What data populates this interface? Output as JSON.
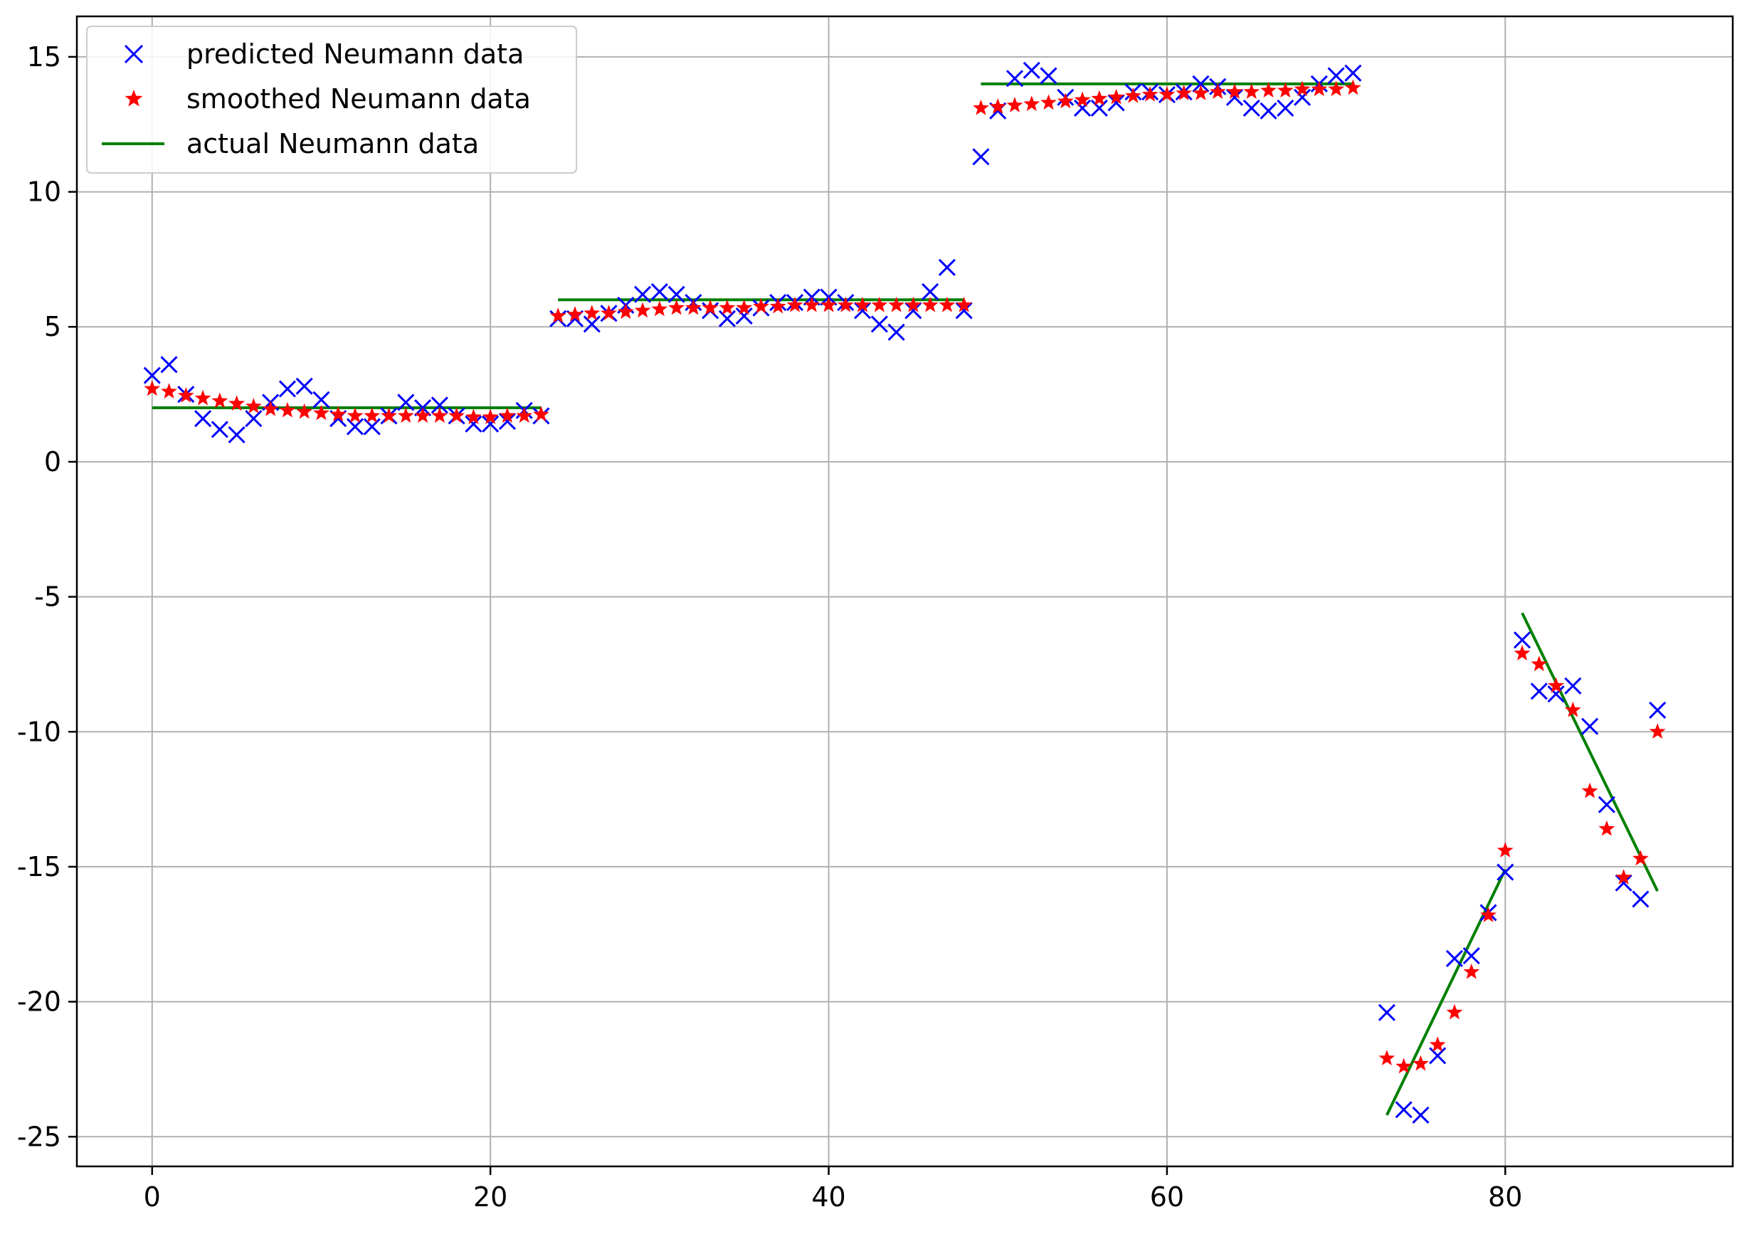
{
  "chart_data": {
    "type": "scatter",
    "title": "",
    "xlabel": "",
    "ylabel": "",
    "xlim": [
      -4.45,
      93.45
    ],
    "ylim": [
      -26.1,
      16.5
    ],
    "grid": true,
    "legend_position": "top-left",
    "x_ticks": [
      0,
      20,
      40,
      60,
      80
    ],
    "x_tick_labels": [
      "0",
      "20",
      "40",
      "60",
      "80"
    ],
    "y_ticks": [
      15,
      10,
      5,
      0,
      -5,
      -10,
      -15,
      -20,
      -25
    ],
    "y_tick_labels": [
      "15",
      "10",
      "5",
      "0",
      "-5",
      "-10",
      "-15",
      "-20",
      "-25"
    ],
    "series": [
      {
        "name": "predicted Neumann data",
        "kind": "x-marker",
        "color": "#0000ff",
        "x": [
          0,
          1,
          2,
          3,
          4,
          5,
          6,
          7,
          8,
          9,
          10,
          11,
          12,
          13,
          14,
          15,
          16,
          17,
          18,
          19,
          20,
          21,
          22,
          23,
          24,
          25,
          26,
          27,
          28,
          29,
          30,
          31,
          32,
          33,
          34,
          35,
          36,
          37,
          38,
          39,
          40,
          41,
          42,
          43,
          44,
          45,
          46,
          47,
          48,
          49,
          50,
          51,
          52,
          53,
          54,
          55,
          56,
          57,
          58,
          59,
          60,
          61,
          62,
          63,
          64,
          65,
          66,
          67,
          68,
          69,
          70,
          71,
          73,
          74,
          75,
          76,
          77,
          78,
          79,
          80,
          81,
          82,
          83,
          84,
          85,
          86,
          87,
          88,
          89
        ],
        "y": [
          3.2,
          3.6,
          2.5,
          1.6,
          1.2,
          1.0,
          1.6,
          2.2,
          2.7,
          2.8,
          2.3,
          1.6,
          1.3,
          1.3,
          1.7,
          2.2,
          2.0,
          2.1,
          1.7,
          1.4,
          1.4,
          1.5,
          1.9,
          1.7,
          5.3,
          5.3,
          5.1,
          5.5,
          5.8,
          6.2,
          6.3,
          6.2,
          5.9,
          5.6,
          5.3,
          5.4,
          5.7,
          5.9,
          5.9,
          6.1,
          6.1,
          5.9,
          5.6,
          5.1,
          4.8,
          5.6,
          6.3,
          7.2,
          5.6,
          11.3,
          13.0,
          14.2,
          14.5,
          14.3,
          13.5,
          13.1,
          13.1,
          13.3,
          13.7,
          13.7,
          13.6,
          13.7,
          14.0,
          13.9,
          13.5,
          13.1,
          13.0,
          13.1,
          13.5,
          14.0,
          14.3,
          14.4,
          -20.4,
          -24.0,
          -24.2,
          -22.0,
          -18.4,
          -18.3,
          -16.7,
          -15.2,
          -6.6,
          -8.5,
          -8.6,
          -8.3,
          -9.8,
          -12.7,
          -15.6,
          -16.2,
          -9.2
        ]
      },
      {
        "name": "smoothed Neumann data",
        "kind": "star-marker",
        "color": "#ff0000",
        "x": [
          0,
          1,
          2,
          3,
          4,
          5,
          6,
          7,
          8,
          9,
          10,
          11,
          12,
          13,
          14,
          15,
          16,
          17,
          18,
          19,
          20,
          21,
          22,
          23,
          24,
          25,
          26,
          27,
          28,
          29,
          30,
          31,
          32,
          33,
          34,
          35,
          36,
          37,
          38,
          39,
          40,
          41,
          42,
          43,
          44,
          45,
          46,
          47,
          48,
          49,
          50,
          51,
          52,
          53,
          54,
          55,
          56,
          57,
          58,
          59,
          60,
          61,
          62,
          63,
          64,
          65,
          66,
          67,
          68,
          69,
          70,
          71,
          73,
          74,
          75,
          76,
          77,
          78,
          79,
          80,
          81,
          82,
          83,
          84,
          85,
          86,
          87,
          88,
          89
        ],
        "y": [
          2.7,
          2.6,
          2.45,
          2.35,
          2.25,
          2.15,
          2.05,
          1.95,
          1.9,
          1.85,
          1.8,
          1.75,
          1.7,
          1.7,
          1.7,
          1.7,
          1.7,
          1.7,
          1.7,
          1.65,
          1.65,
          1.7,
          1.7,
          1.75,
          5.4,
          5.45,
          5.5,
          5.5,
          5.55,
          5.6,
          5.65,
          5.7,
          5.7,
          5.7,
          5.7,
          5.7,
          5.75,
          5.75,
          5.8,
          5.8,
          5.8,
          5.8,
          5.8,
          5.8,
          5.8,
          5.8,
          5.8,
          5.8,
          5.8,
          13.1,
          13.15,
          13.2,
          13.25,
          13.3,
          13.35,
          13.4,
          13.45,
          13.5,
          13.55,
          13.6,
          13.6,
          13.65,
          13.65,
          13.7,
          13.7,
          13.7,
          13.75,
          13.75,
          13.8,
          13.8,
          13.8,
          13.85,
          -22.1,
          -22.4,
          -22.3,
          -21.6,
          -20.4,
          -18.9,
          -16.8,
          -14.4,
          -7.1,
          -7.5,
          -8.3,
          -9.2,
          -12.2,
          -13.6,
          -15.4,
          -14.7,
          -10.0
        ]
      },
      {
        "name": "actual Neumann data",
        "kind": "line-segments",
        "color": "#008000",
        "segments": [
          {
            "x": [
              0,
              23
            ],
            "y": [
              2,
              2
            ]
          },
          {
            "x": [
              24,
              48
            ],
            "y": [
              6,
              6
            ]
          },
          {
            "x": [
              49,
              71
            ],
            "y": [
              14,
              14
            ]
          },
          {
            "x": [
              73,
              80
            ],
            "y": [
              -24.2,
              -15.1
            ]
          },
          {
            "x": [
              81,
              89
            ],
            "y": [
              -5.6,
              -15.9
            ]
          }
        ]
      }
    ]
  }
}
